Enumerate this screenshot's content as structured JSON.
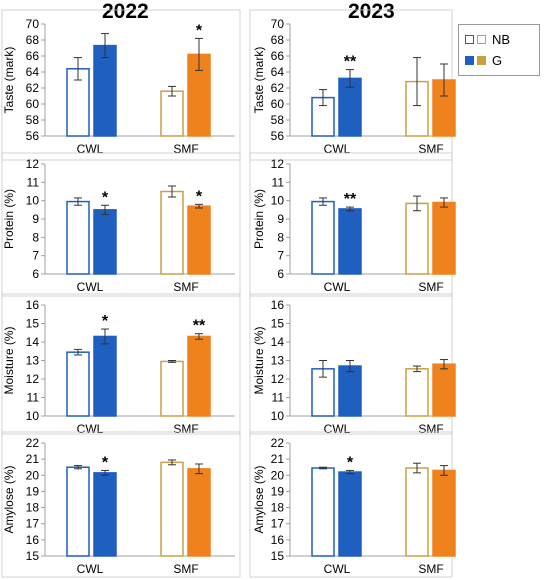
{
  "titles": {
    "left": "2022",
    "right": "2023"
  },
  "legend": [
    {
      "label": "NB",
      "style": "outline",
      "colors": {
        "CWL": "#1f5fbf",
        "SMF": "#c8a046"
      }
    },
    {
      "label": "G",
      "style": "filled",
      "colors": {
        "CWL": "#1f5fbf",
        "SMF": "#c8a040"
      }
    }
  ],
  "colors": {
    "cwl": "#1f5fbf",
    "smf_outline": "#c8a046",
    "smf_fill": "#f0821e",
    "smf_fill_2023": "#f28a2a",
    "error_bar": "#333333",
    "axis": "#a0a0a0",
    "box": "#c8c8c8"
  },
  "chart_data": [
    {
      "id": "taste-2022",
      "type": "bar",
      "ylabel": "Taste (mark)",
      "ylim": [
        56,
        70
      ],
      "ticks": [
        56,
        58,
        60,
        62,
        64,
        66,
        68,
        70
      ],
      "categories": [
        "CWL",
        "SMF"
      ],
      "series": [
        {
          "name": "NB",
          "values": [
            64.4,
            61.6
          ],
          "errors": [
            1.4,
            0.6
          ]
        },
        {
          "name": "G",
          "values": [
            67.3,
            66.2
          ],
          "errors": [
            1.5,
            2.0
          ]
        }
      ],
      "significance": [
        {
          "category": "CWL",
          "series": "G",
          "mark": ""
        },
        {
          "category": "SMF",
          "series": "G",
          "mark": "*"
        }
      ]
    },
    {
      "id": "taste-2023",
      "type": "bar",
      "ylabel": "Taste (mark)",
      "ylim": [
        56,
        70
      ],
      "ticks": [
        56,
        58,
        60,
        62,
        64,
        66,
        68,
        70
      ],
      "categories": [
        "CWL",
        "SMF"
      ],
      "series": [
        {
          "name": "NB",
          "values": [
            60.8,
            62.8
          ],
          "errors": [
            1.0,
            3.0
          ]
        },
        {
          "name": "G",
          "values": [
            63.2,
            63.0
          ],
          "errors": [
            1.1,
            2.0
          ]
        }
      ],
      "significance": [
        {
          "category": "CWL",
          "series": "G",
          "mark": "**"
        },
        {
          "category": "SMF",
          "series": "G",
          "mark": ""
        }
      ]
    },
    {
      "id": "protein-2022",
      "type": "bar",
      "ylabel": "Protein (%)",
      "ylim": [
        6,
        12
      ],
      "ticks": [
        6,
        7,
        8,
        9,
        10,
        11,
        12
      ],
      "categories": [
        "CWL",
        "SMF"
      ],
      "series": [
        {
          "name": "NB",
          "values": [
            9.95,
            10.5
          ],
          "errors": [
            0.2,
            0.3
          ]
        },
        {
          "name": "G",
          "values": [
            9.5,
            9.7
          ],
          "errors": [
            0.25,
            0.1
          ]
        }
      ],
      "significance": [
        {
          "category": "CWL",
          "series": "G",
          "mark": "*"
        },
        {
          "category": "SMF",
          "series": "G",
          "mark": "*"
        }
      ]
    },
    {
      "id": "protein-2023",
      "type": "bar",
      "ylabel": "Protein (%)",
      "ylim": [
        6,
        12
      ],
      "ticks": [
        6,
        7,
        8,
        9,
        10,
        11,
        12
      ],
      "categories": [
        "CWL",
        "SMF"
      ],
      "series": [
        {
          "name": "NB",
          "values": [
            9.95,
            9.85
          ],
          "errors": [
            0.2,
            0.4
          ]
        },
        {
          "name": "G",
          "values": [
            9.55,
            9.9
          ],
          "errors": [
            0.1,
            0.25
          ]
        }
      ],
      "significance": [
        {
          "category": "CWL",
          "series": "G",
          "mark": "**"
        },
        {
          "category": "SMF",
          "series": "G",
          "mark": ""
        }
      ]
    },
    {
      "id": "moisture-2022",
      "type": "bar",
      "ylabel": "Moisture (%)",
      "ylim": [
        10,
        16
      ],
      "ticks": [
        10,
        11,
        12,
        13,
        14,
        15,
        16
      ],
      "categories": [
        "CWL",
        "SMF"
      ],
      "series": [
        {
          "name": "NB",
          "values": [
            13.45,
            12.95
          ],
          "errors": [
            0.15,
            0.05
          ]
        },
        {
          "name": "G",
          "values": [
            14.3,
            14.3
          ],
          "errors": [
            0.4,
            0.15
          ]
        }
      ],
      "significance": [
        {
          "category": "CWL",
          "series": "G",
          "mark": "*"
        },
        {
          "category": "SMF",
          "series": "G",
          "mark": "**"
        }
      ]
    },
    {
      "id": "moisture-2023",
      "type": "bar",
      "ylabel": "Moisture (%)",
      "ylim": [
        10,
        16
      ],
      "ticks": [
        10,
        11,
        12,
        13,
        14,
        15,
        16
      ],
      "categories": [
        "CWL",
        "SMF"
      ],
      "series": [
        {
          "name": "NB",
          "values": [
            12.55,
            12.55
          ],
          "errors": [
            0.45,
            0.15
          ]
        },
        {
          "name": "G",
          "values": [
            12.7,
            12.8
          ],
          "errors": [
            0.3,
            0.25
          ]
        }
      ],
      "significance": [
        {
          "category": "CWL",
          "series": "G",
          "mark": ""
        },
        {
          "category": "SMF",
          "series": "G",
          "mark": ""
        }
      ]
    },
    {
      "id": "amylose-2022",
      "type": "bar",
      "ylabel": "Amylose (%)",
      "ylim": [
        15,
        22
      ],
      "ticks": [
        15,
        16,
        17,
        18,
        19,
        20,
        21,
        22
      ],
      "categories": [
        "CWL",
        "SMF"
      ],
      "series": [
        {
          "name": "NB",
          "values": [
            20.5,
            20.8
          ],
          "errors": [
            0.1,
            0.15
          ]
        },
        {
          "name": "G",
          "values": [
            20.15,
            20.4
          ],
          "errors": [
            0.15,
            0.3
          ]
        }
      ],
      "significance": [
        {
          "category": "CWL",
          "series": "G",
          "mark": "*"
        },
        {
          "category": "SMF",
          "series": "G",
          "mark": ""
        }
      ]
    },
    {
      "id": "amylose-2023",
      "type": "bar",
      "ylabel": "Amylose (%)",
      "ylim": [
        15,
        22
      ],
      "ticks": [
        15,
        16,
        17,
        18,
        19,
        20,
        21,
        22
      ],
      "categories": [
        "CWL",
        "SMF"
      ],
      "series": [
        {
          "name": "NB",
          "values": [
            20.45,
            20.45
          ],
          "errors": [
            0.05,
            0.3
          ]
        },
        {
          "name": "G",
          "values": [
            20.2,
            20.3
          ],
          "errors": [
            0.1,
            0.3
          ]
        }
      ],
      "significance": [
        {
          "category": "CWL",
          "series": "G",
          "mark": "*"
        },
        {
          "category": "SMF",
          "series": "G",
          "mark": ""
        }
      ]
    }
  ]
}
